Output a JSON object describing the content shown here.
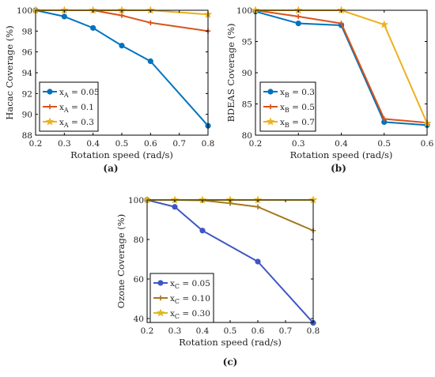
{
  "colors": {
    "blue": "#0072BD",
    "orange": "#D95319",
    "gold": "#EDB120",
    "blue_c": "#3D56C4",
    "brown_c": "#A37820",
    "gold_c": "#E0B81E"
  },
  "chart_data": [
    {
      "id": "a",
      "caption": "(a)",
      "type": "line",
      "xlabel": "Rotation speed (rad/s)",
      "ylabel": "Hacac Coverage (%)",
      "xlim": [
        0.2,
        0.8
      ],
      "ylim": [
        88,
        100
      ],
      "xticks": [
        "0.2",
        "0.3",
        "0.4",
        "0.5",
        "0.6",
        "0.7",
        "0.8"
      ],
      "yticks": [
        "88",
        "90",
        "92",
        "94",
        "96",
        "98",
        "100"
      ],
      "legend_position": "bottom-left",
      "x": [
        0.2,
        0.3,
        0.4,
        0.5,
        0.6,
        0.8
      ],
      "series": [
        {
          "name": "x_A = 0.05",
          "legend_main": "x",
          "legend_sub": "A",
          "legend_value": " = 0.05",
          "color": "#0072BD",
          "marker": "circle",
          "values": [
            100,
            99.4,
            98.3,
            96.6,
            95.1,
            88.9
          ]
        },
        {
          "name": "x_A = 0.1",
          "legend_main": "x",
          "legend_sub": "A",
          "legend_value": " = 0.1",
          "color": "#D95319",
          "marker": "plus",
          "values": [
            100,
            100,
            100,
            99.5,
            98.8,
            98.0
          ]
        },
        {
          "name": "x_A = 0.3",
          "legend_main": "x",
          "legend_sub": "A",
          "legend_value": " = 0.3",
          "color": "#EDB120",
          "marker": "star",
          "values": [
            100,
            100,
            100,
            100,
            100,
            99.6
          ]
        }
      ]
    },
    {
      "id": "b",
      "caption": "(b)",
      "type": "line",
      "xlabel": "Rotation speed (rad/s)",
      "ylabel": "BDEAS Coverage (%)",
      "xlim": [
        0.2,
        0.6
      ],
      "ylim": [
        80,
        100
      ],
      "xticks": [
        "0.2",
        "0.3",
        "0.4",
        "0.5",
        "0.6"
      ],
      "yticks": [
        "80",
        "85",
        "90",
        "95",
        "100"
      ],
      "legend_position": "bottom-left",
      "x": [
        0.2,
        0.3,
        0.4,
        0.5,
        0.6
      ],
      "series": [
        {
          "name": "x_B = 0.3",
          "legend_main": "x",
          "legend_sub": "B",
          "legend_value": " = 0.3",
          "color": "#0072BD",
          "marker": "circle",
          "values": [
            99.8,
            97.9,
            97.6,
            82.1,
            81.6
          ]
        },
        {
          "name": "x_B = 0.5",
          "legend_main": "x",
          "legend_sub": "B",
          "legend_value": " = 0.5",
          "color": "#D95319",
          "marker": "plus",
          "values": [
            100,
            99.0,
            97.9,
            82.6,
            82.0
          ]
        },
        {
          "name": "x_B = 0.7",
          "legend_main": "x",
          "legend_sub": "B",
          "legend_value": " = 0.7",
          "color": "#EDB120",
          "marker": "star",
          "values": [
            100,
            100,
            100,
            97.7,
            81.9
          ]
        }
      ]
    },
    {
      "id": "c",
      "caption": "(c)",
      "type": "line",
      "xlabel": "Rotation speed (rad/s)",
      "ylabel": "Ozone Coverage (%)",
      "xlim": [
        0.2,
        0.8
      ],
      "ylim": [
        38,
        100
      ],
      "xticks": [
        "0.2",
        "0.3",
        "0.4",
        "0.5",
        "0.6",
        "0.7",
        "0.8"
      ],
      "yticks": [
        "40",
        "60",
        "80",
        "100"
      ],
      "ytick_values": [
        40,
        60,
        80,
        100
      ],
      "legend_position": "bottom-left",
      "x": [
        0.2,
        0.3,
        0.4,
        0.5,
        0.6,
        0.8
      ],
      "series": [
        {
          "name": "x_C = 0.05",
          "legend_main": "x",
          "legend_sub": "C",
          "legend_value": " = 0.05",
          "color": "#3D56C4",
          "marker": "circle",
          "values": [
            100,
            96.5,
            84.5,
            null,
            68.8,
            37.8
          ]
        },
        {
          "name": "x_C = 0.10",
          "legend_main": "x",
          "legend_sub": "C",
          "legend_value": " = 0.10",
          "color": "#A37820",
          "marker": "plus",
          "values": [
            100,
            100,
            99.8,
            98.3,
            96.5,
            84.5
          ]
        },
        {
          "name": "x_C = 0.30",
          "legend_main": "x",
          "legend_sub": "C",
          "legend_value": " = 0.30",
          "color": "#E0B81E",
          "marker": "star",
          "values": [
            100,
            100,
            100,
            100,
            100,
            100
          ]
        }
      ]
    }
  ]
}
